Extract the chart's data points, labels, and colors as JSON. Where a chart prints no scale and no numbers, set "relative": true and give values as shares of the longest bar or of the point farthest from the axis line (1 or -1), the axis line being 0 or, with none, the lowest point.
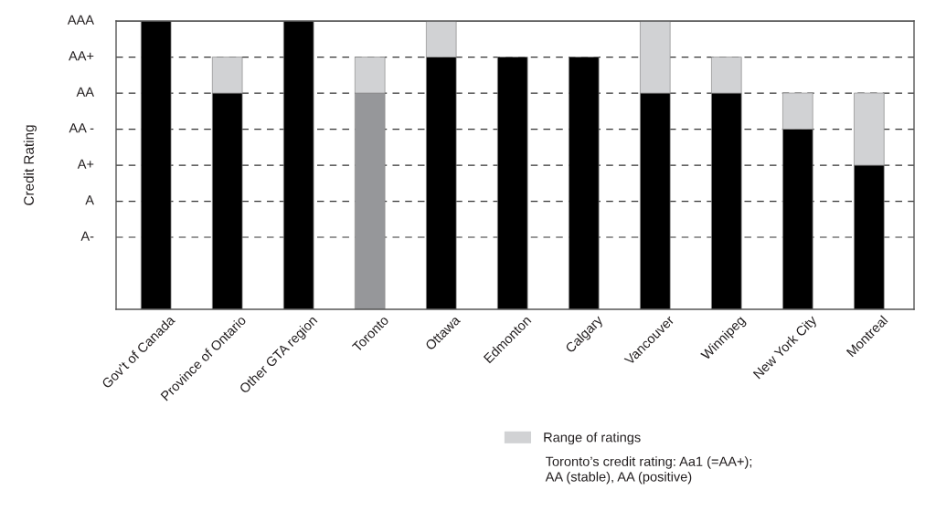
{
  "chart_data": {
    "type": "bar",
    "stacked": true,
    "relative": true,
    "ylabel": "Credit Rating",
    "categories": [
      "Gov’t of Canada",
      "Province of Ontario",
      "Other GTA region",
      "Toronto",
      "Ottawa",
      "Edmonton",
      "Calgary",
      "Vancouver",
      "Winnipeg",
      "New York City",
      "Montreal"
    ],
    "series": [
      {
        "values": [
          1,
          0.75,
          1,
          0.75,
          0.875,
          0.875,
          0.875,
          0.75,
          0.75,
          0.625,
          0.5
        ],
        "colors": [
          "#000000",
          "#000000",
          "#000000",
          "#96979a",
          "#000000",
          "#000000",
          "#000000",
          "#000000",
          "#000000",
          "#000000",
          "#000000"
        ]
      },
      {
        "name": "Range of ratings",
        "color": "#d1d2d4",
        "values": [
          null,
          0.125,
          null,
          0.125,
          0.125,
          null,
          null,
          0.25,
          0.125,
          0.125,
          0.25
        ]
      }
    ],
    "ref_lines": [
      {
        "axis": "y",
        "value": 1,
        "label": "AAA",
        "color": "#555555",
        "line_style": "solid"
      },
      {
        "axis": "y",
        "value": 0.875,
        "label": "AA+",
        "color": "#333333",
        "line_style": "dashed"
      },
      {
        "axis": "y",
        "value": 0.75,
        "label": "AA",
        "color": "#333333",
        "line_style": "dashed"
      },
      {
        "axis": "y",
        "value": 0.625,
        "label": "AA -",
        "color": "#333333",
        "line_style": "dashed"
      },
      {
        "axis": "y",
        "value": 0.5,
        "label": "A+",
        "color": "#333333",
        "line_style": "dashed"
      },
      {
        "axis": "y",
        "value": 0.375,
        "label": "A",
        "color": "#333333",
        "line_style": "dashed"
      },
      {
        "axis": "y",
        "value": 0.25,
        "label": "A-",
        "color": "#333333",
        "line_style": "dashed"
      }
    ],
    "legend": "bottom right",
    "annotations": [
      "Toronto’s credit rating: Aa1 (=AA+);\nAA (stable), AA (positive)"
    ]
  }
}
